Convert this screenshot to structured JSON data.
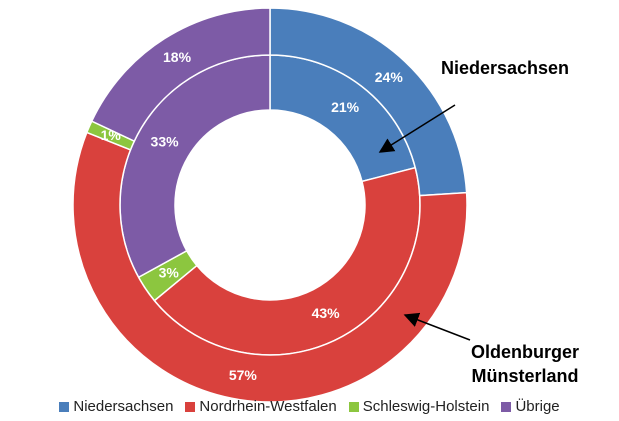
{
  "chart_data": {
    "type": "donut",
    "categories": [
      "Niedersachsen",
      "Nordrhein-Westfalen",
      "Schleswig-Holstein",
      "Übrige"
    ],
    "colors": [
      "#4a7ebb",
      "#d9413d",
      "#8cc63f",
      "#7d5ba6"
    ],
    "series": [
      {
        "name": "Niedersachsen",
        "values": [
          21,
          43,
          3,
          33
        ],
        "value_labels": [
          "21%",
          "43%",
          "3%",
          "33%"
        ]
      },
      {
        "name": "Oldenburger Münsterland",
        "values": [
          24,
          57,
          1,
          18
        ],
        "value_labels": [
          "24%",
          "57%",
          "1%",
          "18%"
        ]
      }
    ],
    "legend": "bottom"
  }
}
